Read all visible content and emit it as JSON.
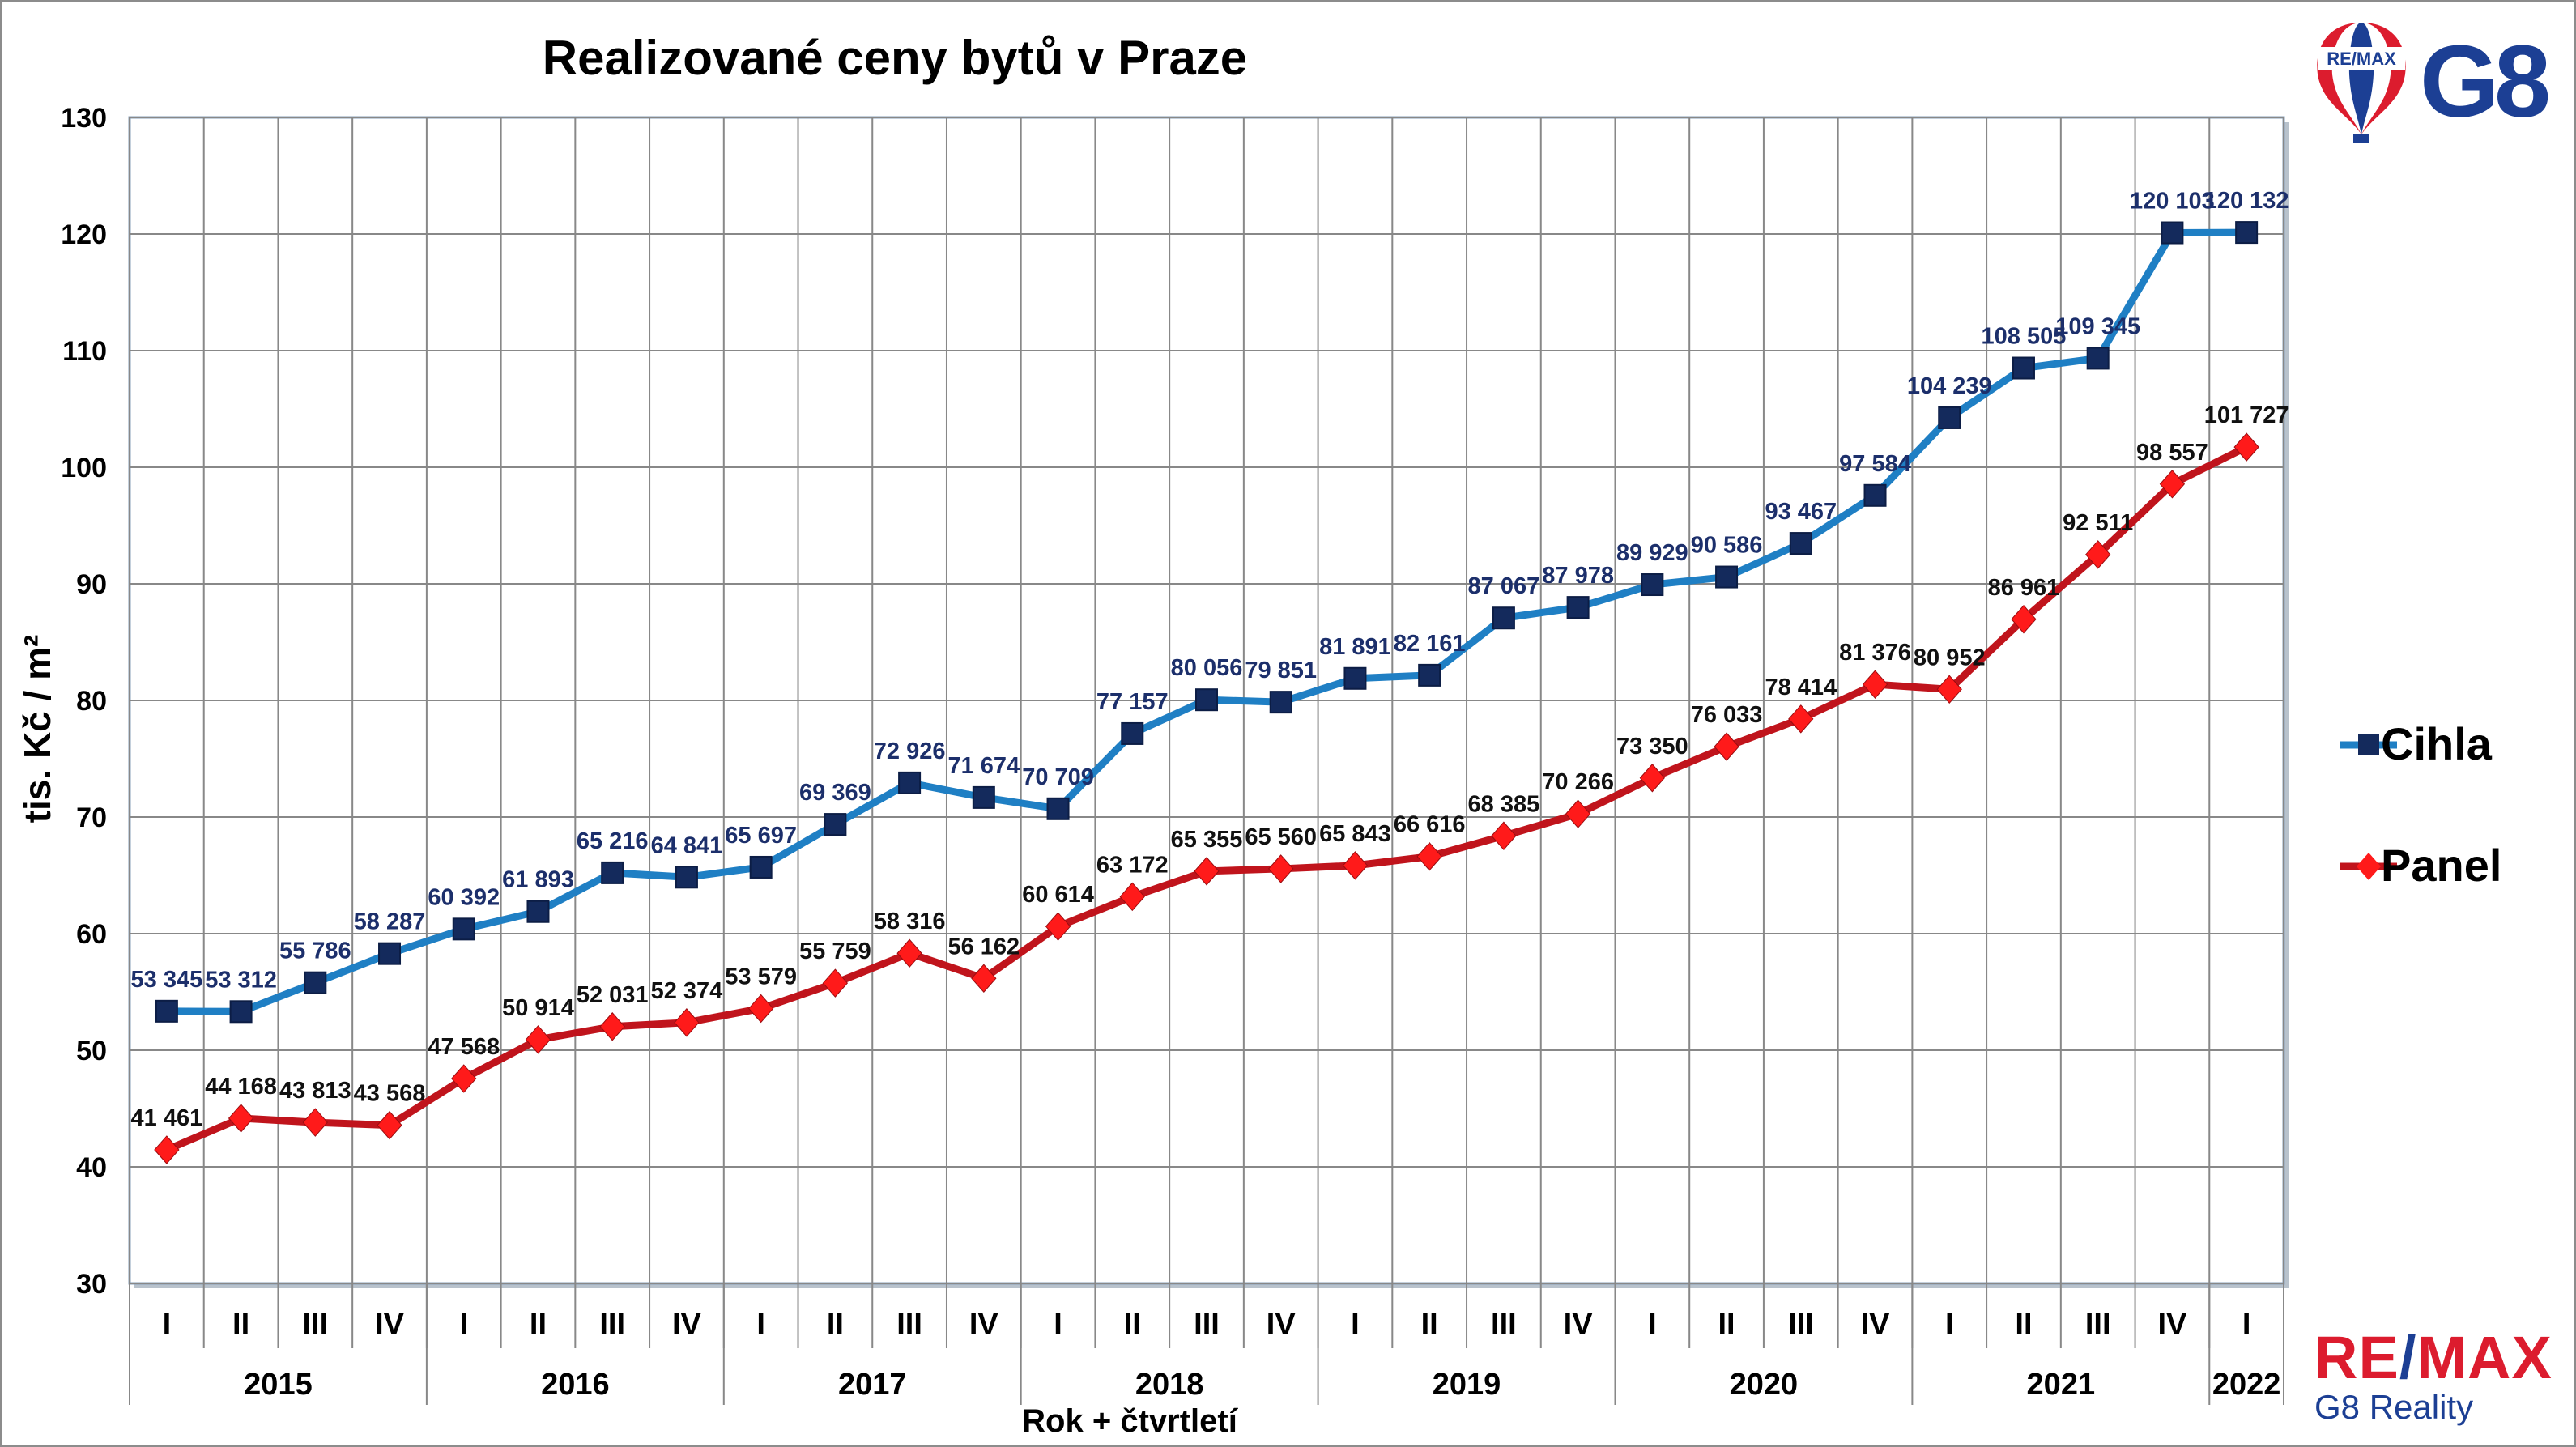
{
  "chart_data": {
    "type": "line",
    "title": "Realizované ceny bytů v Praze",
    "ylabel": "tis. Kč / m²",
    "xlabel": "Rok + čtvrtletí",
    "ylim": [
      30,
      130
    ],
    "yticks": [
      30,
      40,
      50,
      60,
      70,
      80,
      90,
      100,
      110,
      120,
      130
    ],
    "grid": true,
    "legend_position": "right",
    "categories": [
      "I",
      "II",
      "III",
      "IV",
      "I",
      "II",
      "III",
      "IV",
      "I",
      "II",
      "III",
      "IV",
      "I",
      "II",
      "III",
      "IV",
      "I",
      "II",
      "III",
      "IV",
      "I",
      "II",
      "III",
      "IV",
      "I",
      "II",
      "III",
      "IV",
      "I"
    ],
    "years": [
      {
        "label": "2015",
        "span": 4
      },
      {
        "label": "2016",
        "span": 4
      },
      {
        "label": "2017",
        "span": 4
      },
      {
        "label": "2018",
        "span": 4
      },
      {
        "label": "2019",
        "span": 4
      },
      {
        "label": "2020",
        "span": 4
      },
      {
        "label": "2021",
        "span": 4
      },
      {
        "label": "2022",
        "span": 1
      }
    ],
    "series": [
      {
        "name": "Cihla",
        "color": "#1f7fc4",
        "marker_color": "#142a5c",
        "label_color": "#1c2f6b",
        "marker": "square",
        "values": [
          53.345,
          53.312,
          55.786,
          58.287,
          60.392,
          61.893,
          65.216,
          64.841,
          65.697,
          69.369,
          72.926,
          71.674,
          70.709,
          77.157,
          80.056,
          79.851,
          81.891,
          82.161,
          87.067,
          87.978,
          89.929,
          90.586,
          93.467,
          97.584,
          104.239,
          108.505,
          109.345,
          120.103,
          120.132
        ],
        "labels": [
          "53 345",
          "53 312",
          "55 786",
          "58 287",
          "60 392",
          "61 893",
          "65 216",
          "64 841",
          "65 697",
          "69 369",
          "72 926",
          "71 674",
          "70 709",
          "77 157",
          "80 056",
          "79 851",
          "81 891",
          "82 161",
          "87 067",
          "87 978",
          "89 929",
          "90 586",
          "93 467",
          "97 584",
          "104 239",
          "108 505",
          "109 345",
          "120 103",
          "120 132"
        ]
      },
      {
        "name": "Panel",
        "color": "#c0141c",
        "marker_color": "#ff1a1a",
        "label_color": "#111111",
        "marker": "diamond",
        "values": [
          41.461,
          44.168,
          43.813,
          43.568,
          47.568,
          50.914,
          52.031,
          52.374,
          53.579,
          55.759,
          58.316,
          56.162,
          60.614,
          63.172,
          65.355,
          65.56,
          65.843,
          66.616,
          68.385,
          70.266,
          73.35,
          76.033,
          78.414,
          81.376,
          80.952,
          86.961,
          92.511,
          98.557,
          101.727
        ],
        "labels": [
          "41 461",
          "44 168",
          "43 813",
          "43 568",
          "47 568",
          "50 914",
          "52 031",
          "52 374",
          "53 579",
          "55 759",
          "58 316",
          "56 162",
          "60 614",
          "63 172",
          "65 355",
          "65 560",
          "65 843",
          "66 616",
          "68 385",
          "70 266",
          "73 350",
          "76 033",
          "78 414",
          "81 376",
          "80 952",
          "86 961",
          "92 511",
          "98 557",
          "101 727"
        ]
      }
    ]
  },
  "logo_top": {
    "badge_text": "RE/MAX",
    "text": "G8"
  },
  "logo_bottom": {
    "brand_re": "RE",
    "brand_slash": "/",
    "brand_max": "MAX",
    "sub": "G8 Reality"
  }
}
